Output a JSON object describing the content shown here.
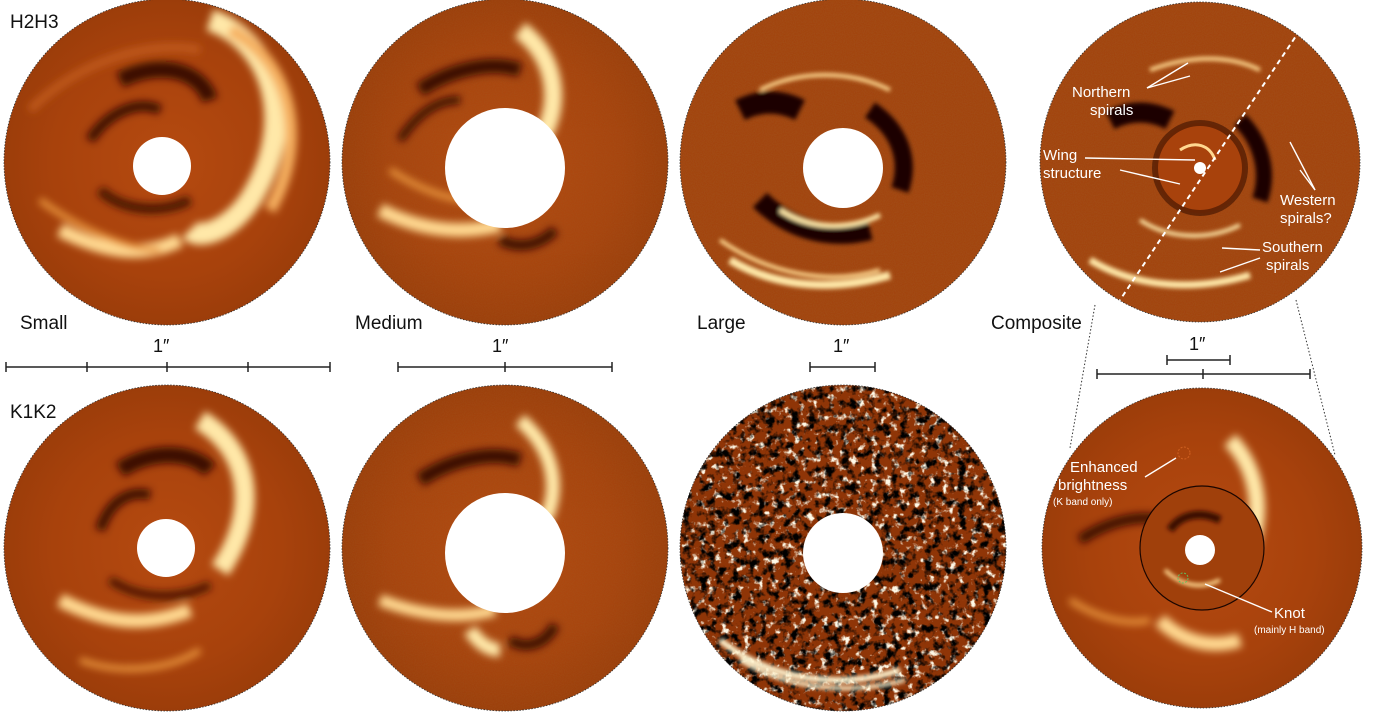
{
  "rows": {
    "top_label": "H2H3",
    "bottom_label": "K1K2"
  },
  "columns": [
    "Small",
    "Medium",
    "Large",
    "Composite"
  ],
  "scale_labels": [
    "1″",
    "1″",
    "1″",
    "1″"
  ],
  "annotations": {
    "northern": [
      "Northern",
      "spirals"
    ],
    "wing": [
      "Wing",
      "structure"
    ],
    "western": [
      "Western",
      "spirals?"
    ],
    "southern": [
      "Southern",
      "spirals"
    ],
    "enhanced": [
      "Enhanced",
      "brightness"
    ],
    "enhanced_note": "(K band only)",
    "knot": "Knot",
    "knot_note": "(mainly H band)"
  },
  "colors": {
    "disk_base": "#a8420c",
    "disk_dark": "#5a1a02",
    "disk_bright": "#ffe6a0",
    "mask": "#ffffff"
  }
}
